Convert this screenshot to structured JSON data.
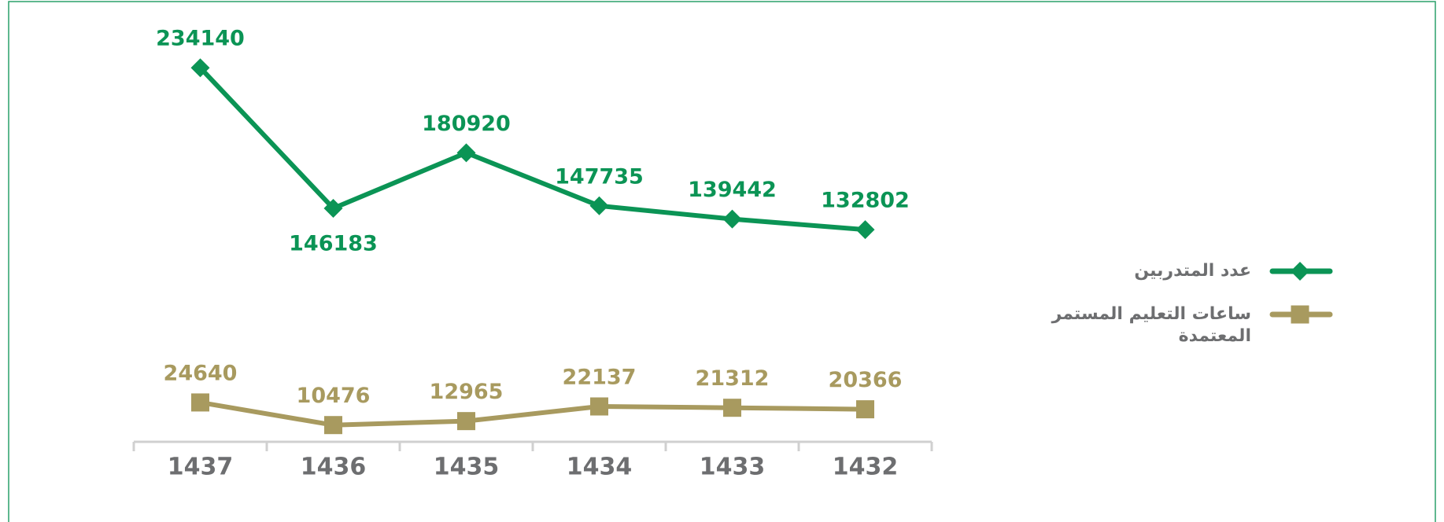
{
  "chart_data": {
    "type": "line",
    "categories": [
      "1437",
      "1436",
      "1435",
      "1434",
      "1433",
      "1432"
    ],
    "series": [
      {
        "name": "عدد المتدربين",
        "color": "#0b9455",
        "values": [
          234140,
          146183,
          180920,
          147735,
          139442,
          132802
        ]
      },
      {
        "name": "ساعات التعليم المستمر المعتمدة",
        "color": "#a89a5f",
        "values": [
          24640,
          10476,
          12965,
          22137,
          21312,
          20366
        ]
      }
    ],
    "ylim": [
      0,
      250000
    ],
    "legend": "right"
  }
}
